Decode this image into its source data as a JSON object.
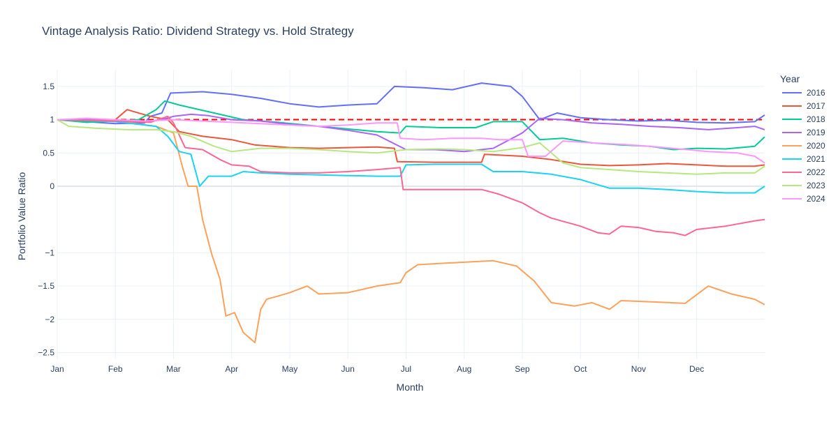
{
  "chart_data": {
    "type": "line",
    "title": "Vintage Analysis Ratio: Dividend Strategy vs. Hold Strategy",
    "xlabel": "Month",
    "ylabel": "Portfolio Value Ratio",
    "x_ticks": [
      "Jan",
      "Feb",
      "Mar",
      "Apr",
      "May",
      "Jun",
      "Jul",
      "Aug",
      "Sep",
      "Oct",
      "Nov",
      "Dec"
    ],
    "y_ticks": [
      "1.5",
      "1",
      "0.5",
      "0",
      "−1",
      "−1.5",
      "−2",
      "−2.5"
    ],
    "y_tick_values": [
      1.5,
      1,
      0.5,
      0,
      -1,
      -1.5,
      -2,
      -2.5
    ],
    "ylim": [
      -2.6,
      1.75
    ],
    "xlim": [
      0,
      12.17
    ],
    "grid": true,
    "legend_title": "Year",
    "legend_position": "right",
    "reference_line": {
      "y": 1,
      "style": "dashed",
      "color": "#ff0000"
    },
    "series": [
      {
        "name": "2016",
        "color": "#636efa",
        "points": [
          [
            0,
            1.0
          ],
          [
            0.5,
            0.97
          ],
          [
            1,
            0.94
          ],
          [
            1.5,
            0.95
          ],
          [
            1.6,
            1.05
          ],
          [
            1.8,
            1.1
          ],
          [
            1.95,
            1.4
          ],
          [
            2.5,
            1.42
          ],
          [
            3,
            1.38
          ],
          [
            3.5,
            1.32
          ],
          [
            4,
            1.24
          ],
          [
            4.5,
            1.19
          ],
          [
            5,
            1.22
          ],
          [
            5.5,
            1.24
          ],
          [
            5.8,
            1.5
          ],
          [
            6.3,
            1.48
          ],
          [
            6.8,
            1.45
          ],
          [
            7.3,
            1.55
          ],
          [
            7.8,
            1.5
          ],
          [
            8.0,
            1.35
          ],
          [
            8.3,
            1.0
          ],
          [
            8.6,
            1.1
          ],
          [
            9,
            1.03
          ],
          [
            9.5,
            1.0
          ],
          [
            10,
            0.98
          ],
          [
            10.5,
            0.99
          ],
          [
            11,
            0.96
          ],
          [
            11.5,
            0.95
          ],
          [
            12.0,
            0.97
          ],
          [
            12.17,
            1.07
          ]
        ]
      },
      {
        "name": "2017",
        "color": "#ef553b",
        "points": [
          [
            0,
            1.0
          ],
          [
            1,
            1.0
          ],
          [
            1.2,
            1.15
          ],
          [
            1.6,
            1.05
          ],
          [
            1.9,
            1.0
          ],
          [
            2.1,
            0.82
          ],
          [
            2.5,
            0.75
          ],
          [
            3,
            0.7
          ],
          [
            3.4,
            0.62
          ],
          [
            4,
            0.58
          ],
          [
            4.5,
            0.57
          ],
          [
            5,
            0.58
          ],
          [
            5.5,
            0.59
          ],
          [
            5.8,
            0.57
          ],
          [
            5.85,
            0.37
          ],
          [
            6.5,
            0.36
          ],
          [
            7.3,
            0.36
          ],
          [
            7.35,
            0.48
          ],
          [
            8.0,
            0.45
          ],
          [
            8.5,
            0.4
          ],
          [
            9,
            0.33
          ],
          [
            9.5,
            0.31
          ],
          [
            10,
            0.32
          ],
          [
            10.5,
            0.34
          ],
          [
            11,
            0.32
          ],
          [
            11.5,
            0.3
          ],
          [
            12.0,
            0.3
          ],
          [
            12.17,
            0.32
          ]
        ]
      },
      {
        "name": "2018",
        "color": "#00cc96",
        "points": [
          [
            0,
            1.0
          ],
          [
            0.5,
            0.96
          ],
          [
            1,
            0.98
          ],
          [
            1.4,
            1.0
          ],
          [
            1.7,
            1.15
          ],
          [
            1.85,
            1.28
          ],
          [
            2.1,
            1.22
          ],
          [
            2.7,
            1.1
          ],
          [
            3.2,
            1.0
          ],
          [
            3.8,
            0.96
          ],
          [
            4.5,
            0.9
          ],
          [
            5,
            0.86
          ],
          [
            5.5,
            0.82
          ],
          [
            5.9,
            0.8
          ],
          [
            6.0,
            0.9
          ],
          [
            6.6,
            0.88
          ],
          [
            7.2,
            0.88
          ],
          [
            7.5,
            0.97
          ],
          [
            8.0,
            0.97
          ],
          [
            8.3,
            0.7
          ],
          [
            8.7,
            0.72
          ],
          [
            9.2,
            0.65
          ],
          [
            9.7,
            0.62
          ],
          [
            10.2,
            0.6
          ],
          [
            10.6,
            0.55
          ],
          [
            11,
            0.57
          ],
          [
            11.5,
            0.56
          ],
          [
            12.0,
            0.6
          ],
          [
            12.17,
            0.74
          ]
        ]
      },
      {
        "name": "2019",
        "color": "#ab63fa",
        "points": [
          [
            0,
            1.0
          ],
          [
            0.5,
            1.0
          ],
          [
            1,
            0.98
          ],
          [
            1.5,
            0.96
          ],
          [
            1.8,
            1.0
          ],
          [
            2,
            1.05
          ],
          [
            2.3,
            1.08
          ],
          [
            2.6,
            1.06
          ],
          [
            3,
            1.0
          ],
          [
            3.5,
            0.98
          ],
          [
            4,
            0.93
          ],
          [
            4.5,
            0.9
          ],
          [
            5,
            0.84
          ],
          [
            5.5,
            0.77
          ],
          [
            6,
            0.55
          ],
          [
            6.5,
            0.55
          ],
          [
            7,
            0.52
          ],
          [
            7.5,
            0.57
          ],
          [
            8,
            0.8
          ],
          [
            8.3,
            1.02
          ],
          [
            8.7,
            1.0
          ],
          [
            9.2,
            0.95
          ],
          [
            9.7,
            0.93
          ],
          [
            10.2,
            0.9
          ],
          [
            10.7,
            0.88
          ],
          [
            11.2,
            0.85
          ],
          [
            11.7,
            0.88
          ],
          [
            12.0,
            0.9
          ],
          [
            12.17,
            0.85
          ]
        ]
      },
      {
        "name": "2020",
        "color": "#ffa15a",
        "points": [
          [
            0,
            1.0
          ],
          [
            1,
            0.98
          ],
          [
            1.7,
            0.9
          ],
          [
            2.0,
            0.8
          ],
          [
            2.15,
            0.3
          ],
          [
            2.25,
            0.0
          ],
          [
            2.4,
            0.0
          ],
          [
            2.5,
            -0.5
          ],
          [
            2.65,
            -1.0
          ],
          [
            2.8,
            -1.4
          ],
          [
            2.9,
            -1.95
          ],
          [
            3.05,
            -1.9
          ],
          [
            3.2,
            -2.2
          ],
          [
            3.4,
            -2.35
          ],
          [
            3.5,
            -1.85
          ],
          [
            3.6,
            -1.7
          ],
          [
            3.8,
            -1.65
          ],
          [
            4.0,
            -1.6
          ],
          [
            4.3,
            -1.5
          ],
          [
            4.5,
            -1.62
          ],
          [
            5,
            -1.6
          ],
          [
            5.5,
            -1.5
          ],
          [
            5.9,
            -1.45
          ],
          [
            6.0,
            -1.3
          ],
          [
            6.2,
            -1.18
          ],
          [
            6.8,
            -1.15
          ],
          [
            7.5,
            -1.12
          ],
          [
            7.9,
            -1.2
          ],
          [
            8.2,
            -1.42
          ],
          [
            8.5,
            -1.75
          ],
          [
            8.9,
            -1.8
          ],
          [
            9.2,
            -1.75
          ],
          [
            9.5,
            -1.85
          ],
          [
            9.7,
            -1.72
          ],
          [
            10.3,
            -1.74
          ],
          [
            10.8,
            -1.76
          ],
          [
            11.2,
            -1.5
          ],
          [
            11.6,
            -1.62
          ],
          [
            12.0,
            -1.7
          ],
          [
            12.17,
            -1.78
          ]
        ]
      },
      {
        "name": "2021",
        "color": "#19d3f3",
        "points": [
          [
            0,
            1.0
          ],
          [
            1,
            0.97
          ],
          [
            1.7,
            0.9
          ],
          [
            1.9,
            0.75
          ],
          [
            2.1,
            0.52
          ],
          [
            2.3,
            0.48
          ],
          [
            2.45,
            0.0
          ],
          [
            2.6,
            0.15
          ],
          [
            3.0,
            0.15
          ],
          [
            3.2,
            0.22
          ],
          [
            3.5,
            0.2
          ],
          [
            4,
            0.18
          ],
          [
            4.5,
            0.17
          ],
          [
            5,
            0.16
          ],
          [
            5.5,
            0.15
          ],
          [
            5.9,
            0.15
          ],
          [
            6.0,
            0.32
          ],
          [
            6.5,
            0.33
          ],
          [
            7.3,
            0.33
          ],
          [
            7.5,
            0.22
          ],
          [
            8.0,
            0.22
          ],
          [
            8.5,
            0.18
          ],
          [
            9,
            0.1
          ],
          [
            9.5,
            -0.03
          ],
          [
            10,
            -0.03
          ],
          [
            10.5,
            -0.05
          ],
          [
            11,
            -0.08
          ],
          [
            11.5,
            -0.1
          ],
          [
            12.0,
            -0.1
          ],
          [
            12.17,
            0.0
          ]
        ]
      },
      {
        "name": "2022",
        "color": "#ff6692",
        "points": [
          [
            0,
            1.0
          ],
          [
            1,
            0.98
          ],
          [
            1.6,
            0.96
          ],
          [
            1.9,
            1.05
          ],
          [
            2.0,
            0.95
          ],
          [
            2.2,
            0.58
          ],
          [
            2.5,
            0.55
          ],
          [
            2.8,
            0.4
          ],
          [
            3.0,
            0.32
          ],
          [
            3.3,
            0.3
          ],
          [
            3.5,
            0.22
          ],
          [
            4.0,
            0.2
          ],
          [
            4.5,
            0.2
          ],
          [
            5,
            0.22
          ],
          [
            5.5,
            0.25
          ],
          [
            5.9,
            0.28
          ],
          [
            5.95,
            -0.05
          ],
          [
            6.5,
            -0.05
          ],
          [
            7.3,
            -0.05
          ],
          [
            7.6,
            -0.12
          ],
          [
            8.0,
            -0.25
          ],
          [
            8.3,
            -0.4
          ],
          [
            8.5,
            -0.48
          ],
          [
            9.0,
            -0.6
          ],
          [
            9.3,
            -0.7
          ],
          [
            9.5,
            -0.72
          ],
          [
            9.7,
            -0.6
          ],
          [
            10.0,
            -0.62
          ],
          [
            10.3,
            -0.68
          ],
          [
            10.6,
            -0.7
          ],
          [
            10.8,
            -0.74
          ],
          [
            11.0,
            -0.65
          ],
          [
            11.5,
            -0.6
          ],
          [
            12.0,
            -0.52
          ],
          [
            12.17,
            -0.5
          ]
        ]
      },
      {
        "name": "2023",
        "color": "#b6e880",
        "points": [
          [
            0,
            1.0
          ],
          [
            0.2,
            0.9
          ],
          [
            0.7,
            0.87
          ],
          [
            1.2,
            0.85
          ],
          [
            1.7,
            0.85
          ],
          [
            2.0,
            0.82
          ],
          [
            2.3,
            0.75
          ],
          [
            2.7,
            0.6
          ],
          [
            3.0,
            0.52
          ],
          [
            3.5,
            0.57
          ],
          [
            4,
            0.57
          ],
          [
            4.5,
            0.55
          ],
          [
            5,
            0.52
          ],
          [
            5.5,
            0.5
          ],
          [
            6,
            0.55
          ],
          [
            6.5,
            0.56
          ],
          [
            7,
            0.55
          ],
          [
            7.5,
            0.52
          ],
          [
            8.0,
            0.58
          ],
          [
            8.3,
            0.65
          ],
          [
            8.7,
            0.35
          ],
          [
            9.0,
            0.28
          ],
          [
            9.5,
            0.25
          ],
          [
            10,
            0.22
          ],
          [
            10.5,
            0.2
          ],
          [
            11,
            0.18
          ],
          [
            11.5,
            0.2
          ],
          [
            12.0,
            0.2
          ],
          [
            12.17,
            0.3
          ]
        ]
      },
      {
        "name": "2024",
        "color": "#ff97ff",
        "points": [
          [
            0,
            1.0
          ],
          [
            0.5,
            1.02
          ],
          [
            1,
            1.0
          ],
          [
            1.5,
            0.98
          ],
          [
            2,
            1.0
          ],
          [
            2.5,
            0.98
          ],
          [
            3,
            0.96
          ],
          [
            3.5,
            0.94
          ],
          [
            4,
            0.92
          ],
          [
            4.5,
            0.9
          ],
          [
            5,
            0.92
          ],
          [
            5.5,
            0.95
          ],
          [
            5.85,
            0.95
          ],
          [
            5.9,
            0.72
          ],
          [
            6.3,
            0.7
          ],
          [
            6.8,
            0.72
          ],
          [
            7.3,
            0.72
          ],
          [
            7.6,
            0.7
          ],
          [
            8.0,
            0.7
          ],
          [
            8.1,
            0.45
          ],
          [
            8.4,
            0.45
          ],
          [
            8.7,
            0.68
          ],
          [
            9.2,
            0.65
          ],
          [
            9.7,
            0.63
          ],
          [
            10.2,
            0.6
          ],
          [
            10.7,
            0.56
          ],
          [
            11.2,
            0.52
          ],
          [
            11.7,
            0.5
          ],
          [
            12.0,
            0.45
          ],
          [
            12.17,
            0.35
          ]
        ]
      }
    ]
  }
}
